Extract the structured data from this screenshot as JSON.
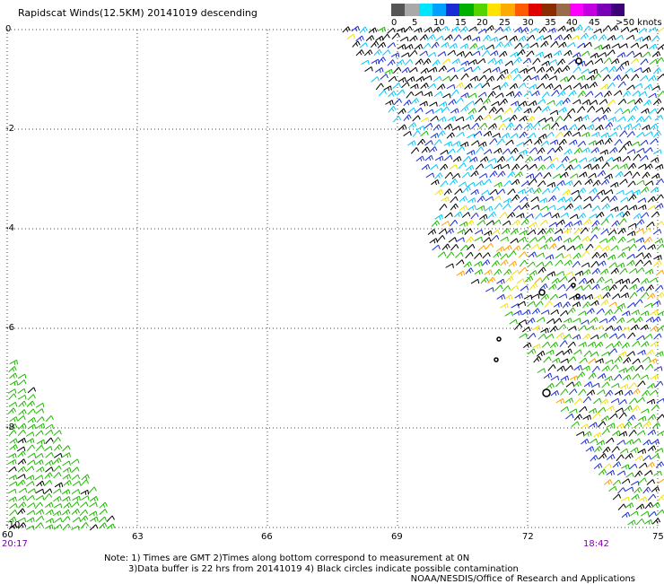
{
  "title": "Rapidscat Winds(12.5KM) 20141019 descending",
  "legend": {
    "colors": [
      "#555555",
      "#a9a9a9",
      "#00e5ff",
      "#00a0ff",
      "#1a2bd6",
      "#00b000",
      "#55d400",
      "#ffe200",
      "#ffaa00",
      "#ff5a00",
      "#e00000",
      "#8b2b00",
      "#9b6a4a",
      "#ff00ff",
      "#c400e0",
      "#7a00b8",
      "#3d0078"
    ],
    "ticks": [
      "0",
      "5",
      "10",
      "15",
      "20",
      "25",
      "30",
      "35",
      "40",
      "45",
      ">50 knots"
    ]
  },
  "axes": {
    "lat_labels": [
      "0",
      "-2",
      "-4",
      "-6",
      "-8",
      "-10"
    ],
    "lon_labels": [
      "60",
      "63",
      "66",
      "69",
      "72",
      "75"
    ]
  },
  "times": {
    "left": "20:17",
    "right": "18:42"
  },
  "notes": {
    "line1": "Note: 1) Times are GMT 2)Times along bottom correspond to measurement at 0N",
    "line2": "3)Data buffer is 22 hrs from 20141019 4) Black circles indicate possible contamination"
  },
  "credit": "NOAA/NESDIS/Office of Research and Applications",
  "colors": {
    "speed_0_5": "#000000",
    "speed_5_10": "#00c8ff",
    "speed_10_15": "#1a2bd6",
    "speed_15_20": "#1fb800",
    "speed_20_25": "#f2e000",
    "speed_25_30": "#ffa000",
    "speed_30_35": "#e00000",
    "time_label": "#7a00a8"
  }
}
